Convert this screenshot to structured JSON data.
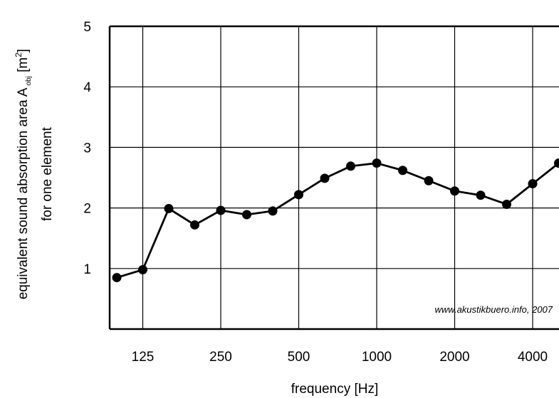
{
  "chart_data": {
    "type": "line",
    "xlabel": "frequency [Hz]",
    "ylabel_line1_prefix": "equivalent sound absorption area A",
    "ylabel_line1_sub": "obj",
    "ylabel_line1_unit_open": " [m",
    "ylabel_line1_sup": "2",
    "ylabel_line1_unit_close": "]",
    "ylabel_line2": "for one element",
    "x_tick_labels": [
      "125",
      "250",
      "500",
      "1000",
      "2000",
      "4000"
    ],
    "x": [
      "100",
      "125",
      "160",
      "200",
      "250",
      "315",
      "400",
      "500",
      "630",
      "800",
      "1000",
      "1250",
      "1600",
      "2000",
      "2500",
      "3150",
      "4000",
      "5000"
    ],
    "y_ticks": [
      1,
      2,
      3,
      4,
      5
    ],
    "ylim": [
      0,
      5
    ],
    "series": [
      {
        "values": [
          0.85,
          0.98,
          1.99,
          1.72,
          1.96,
          1.89,
          1.95,
          2.22,
          2.49,
          2.69,
          2.74,
          2.62,
          2.45,
          2.28,
          2.21,
          2.06,
          2.4,
          2.74
        ]
      }
    ],
    "grid": true,
    "annotation": "www.akustikbuero.info, 2007",
    "colors": {
      "line": "#000000",
      "marker": "#000000",
      "grid": "#000000"
    }
  }
}
